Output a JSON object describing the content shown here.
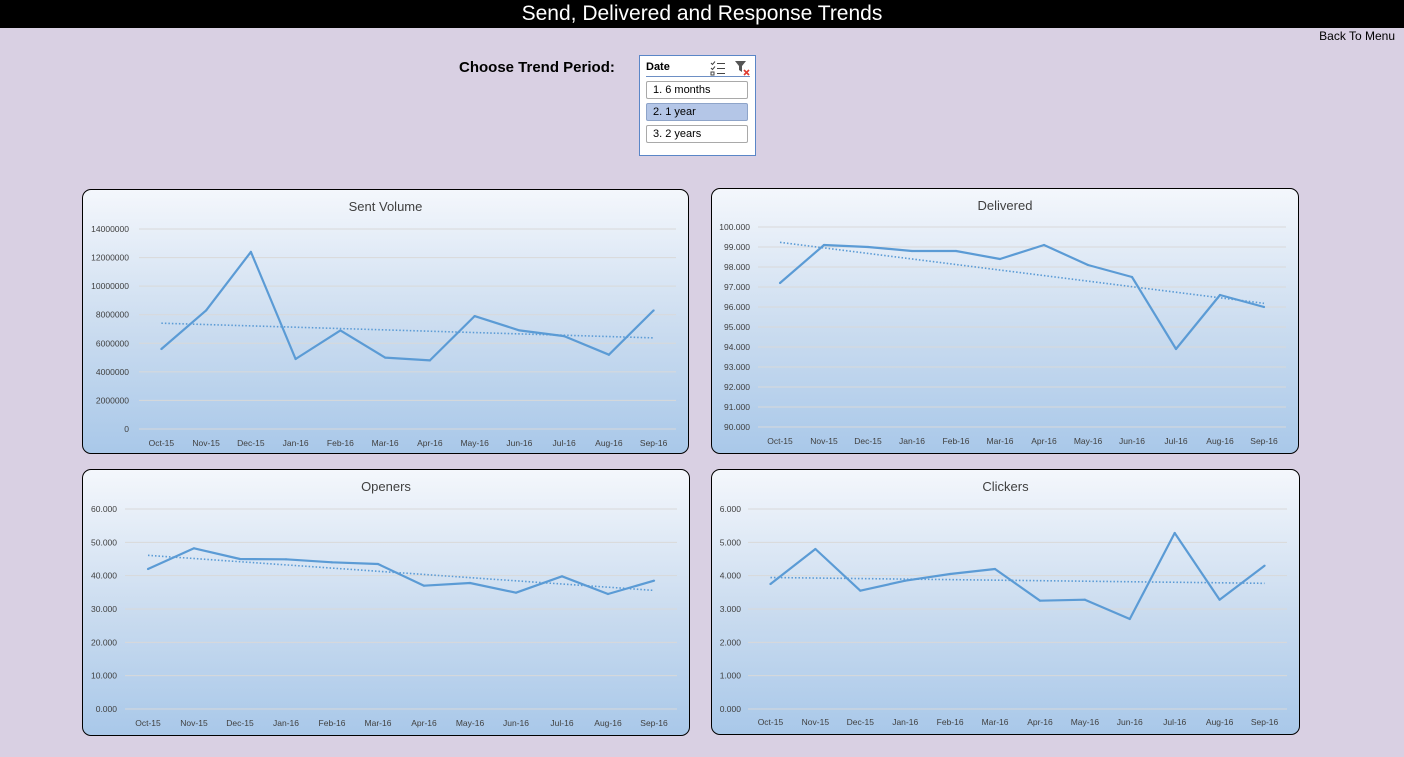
{
  "header": {
    "title": "Send, Delivered and Response Trends"
  },
  "nav": {
    "back_label": "Back To Menu"
  },
  "filter": {
    "label": "Choose Trend Period:",
    "slicer": {
      "header": "Date",
      "items": [
        {
          "label": "1. 6 months",
          "selected": false
        },
        {
          "label": "2. 1 year",
          "selected": true
        },
        {
          "label": "3. 2 years",
          "selected": false
        }
      ]
    }
  },
  "colors": {
    "series": "#5b9bd5",
    "trendline": "#5b9bd5",
    "gridline": "#d9d9d9"
  },
  "chart_data": [
    {
      "id": "sent",
      "type": "line",
      "title": "Sent Volume",
      "categories": [
        "Oct-15",
        "Nov-15",
        "Dec-15",
        "Jan-16",
        "Feb-16",
        "Mar-16",
        "Apr-16",
        "May-16",
        "Jun-16",
        "Jul-16",
        "Aug-16",
        "Sep-16"
      ],
      "values": [
        5600000,
        8300000,
        12400000,
        4900000,
        6900000,
        5000000,
        4800000,
        7900000,
        6900000,
        6500000,
        5200000,
        8300000
      ],
      "trendline": "linear",
      "ylim": [
        0,
        14000000
      ],
      "yticks": [
        "0",
        "2000000",
        "4000000",
        "6000000",
        "8000000",
        "10000000",
        "12000000",
        "14000000"
      ],
      "grid": true
    },
    {
      "id": "delivered",
      "type": "line",
      "title": "Delivered",
      "categories": [
        "Oct-15",
        "Nov-15",
        "Dec-15",
        "Jan-16",
        "Feb-16",
        "Mar-16",
        "Apr-16",
        "May-16",
        "Jun-16",
        "Jul-16",
        "Aug-16",
        "Sep-16"
      ],
      "values": [
        97.2,
        99.1,
        99.0,
        98.8,
        98.8,
        98.4,
        99.1,
        98.1,
        97.5,
        93.9,
        96.6,
        96.0
      ],
      "trendline": "linear",
      "ylim": [
        90,
        100
      ],
      "yticks": [
        "90.000",
        "91.000",
        "92.000",
        "93.000",
        "94.000",
        "95.000",
        "96.000",
        "97.000",
        "98.000",
        "99.000",
        "100.000"
      ],
      "grid": true
    },
    {
      "id": "openers",
      "type": "line",
      "title": "Openers",
      "categories": [
        "Oct-15",
        "Nov-15",
        "Dec-15",
        "Jan-16",
        "Feb-16",
        "Mar-16",
        "Apr-16",
        "May-16",
        "Jun-16",
        "Jul-16",
        "Aug-16",
        "Sep-16"
      ],
      "values": [
        42.0,
        48.2,
        45.0,
        44.9,
        44.0,
        43.5,
        37.0,
        37.8,
        34.9,
        39.8,
        34.5,
        38.5
      ],
      "trendline": "linear",
      "ylim": [
        0,
        60
      ],
      "yticks": [
        "0.000",
        "10.000",
        "20.000",
        "30.000",
        "40.000",
        "50.000",
        "60.000"
      ],
      "grid": true
    },
    {
      "id": "clickers",
      "type": "line",
      "title": "Clickers",
      "categories": [
        "Oct-15",
        "Nov-15",
        "Dec-15",
        "Jan-16",
        "Feb-16",
        "Mar-16",
        "Apr-16",
        "May-16",
        "Jun-16",
        "Jul-16",
        "Aug-16",
        "Sep-16"
      ],
      "values": [
        3.75,
        4.8,
        3.55,
        3.85,
        4.05,
        4.2,
        3.25,
        3.28,
        2.7,
        5.28,
        3.28,
        4.3
      ],
      "trendline": "linear",
      "ylim": [
        0,
        6
      ],
      "yticks": [
        "0.000",
        "1.000",
        "2.000",
        "3.000",
        "4.000",
        "5.000",
        "6.000"
      ],
      "grid": true
    }
  ]
}
